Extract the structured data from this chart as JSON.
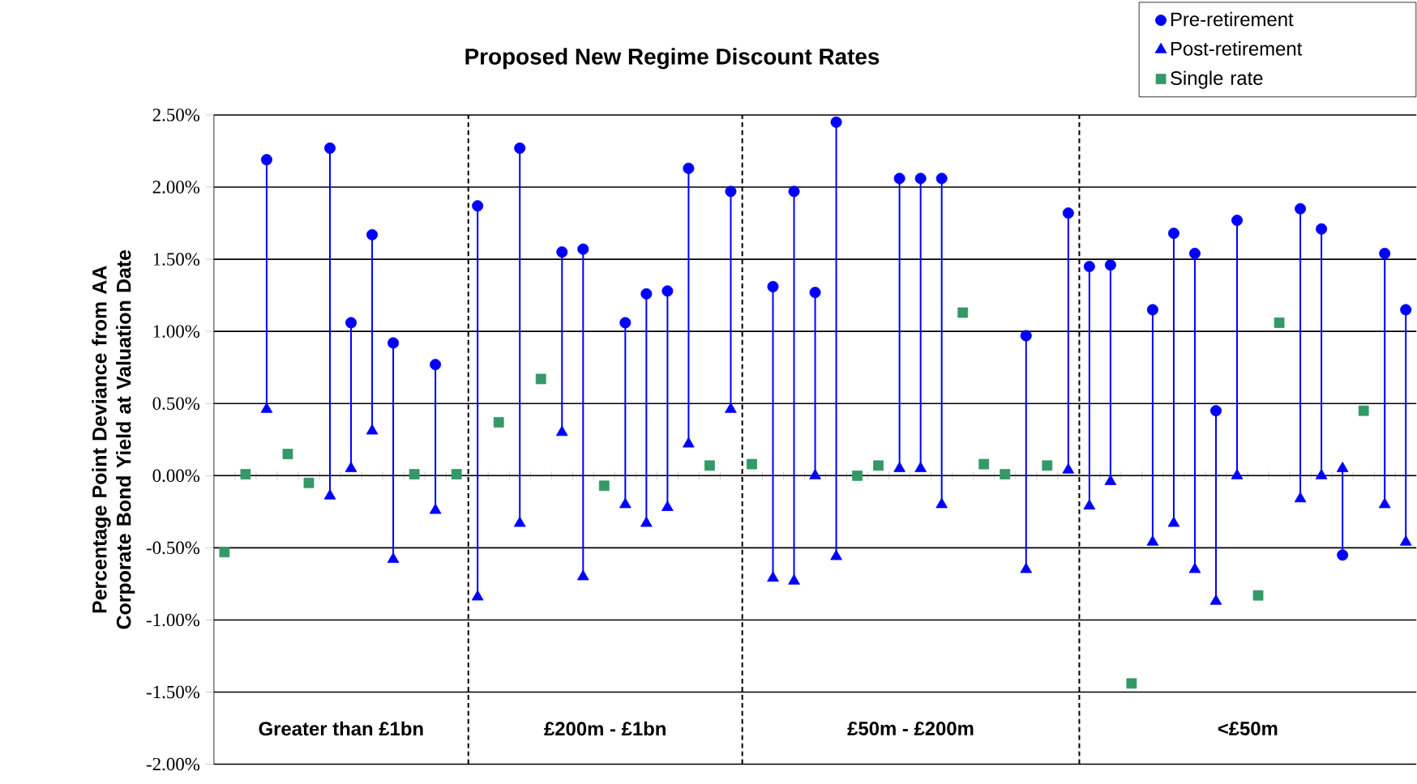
{
  "chart_data": {
    "type": "scatter",
    "title": "Proposed New Regime Discount Rates",
    "ylabel": "Percentage Point Deviance from AA Corporate Bond Yield at Valuation Date",
    "categories": [
      null,
      null,
      null,
      null,
      null,
      null,
      null,
      null,
      null,
      null,
      null,
      null,
      null,
      null,
      null,
      null,
      null,
      null,
      null,
      null,
      null,
      null,
      null,
      null,
      null,
      null,
      null,
      null,
      null,
      null,
      null,
      null,
      null,
      null,
      null,
      null,
      null,
      null,
      null,
      null,
      null,
      null,
      null,
      null,
      null,
      null,
      null,
      null,
      null,
      null,
      null,
      null,
      null,
      null,
      null,
      null,
      null
    ],
    "series": [
      {
        "name": "Pre-retirement",
        "color": "#0000ff",
        "marker": "circle",
        "values": [
          null,
          null,
          2.19,
          null,
          null,
          2.27,
          1.06,
          1.67,
          0.92,
          null,
          0.77,
          null,
          1.87,
          null,
          2.27,
          null,
          1.55,
          1.57,
          null,
          1.06,
          1.26,
          1.28,
          2.13,
          null,
          1.97,
          null,
          1.31,
          1.97,
          1.27,
          2.45,
          null,
          null,
          2.06,
          2.06,
          2.06,
          null,
          null,
          null,
          0.97,
          null,
          1.82,
          1.45,
          1.46,
          null,
          1.15,
          1.68,
          1.54,
          0.45,
          1.77,
          null,
          null,
          1.85,
          1.71,
          -0.55,
          null,
          1.54,
          1.15
        ]
      },
      {
        "name": "Post-retirement",
        "color": "#0000ff",
        "marker": "triangle",
        "values": [
          null,
          null,
          0.46,
          null,
          null,
          -0.14,
          0.05,
          0.31,
          -0.58,
          null,
          -0.24,
          null,
          -0.84,
          null,
          -0.33,
          null,
          0.3,
          -0.7,
          null,
          -0.2,
          -0.33,
          -0.22,
          0.22,
          null,
          0.46,
          null,
          -0.71,
          -0.73,
          0.0,
          -0.56,
          null,
          null,
          0.05,
          0.05,
          -0.2,
          null,
          null,
          null,
          -0.65,
          null,
          0.04,
          -0.21,
          -0.04,
          null,
          -0.46,
          -0.33,
          -0.65,
          -0.87,
          0.0,
          null,
          null,
          -0.16,
          0.0,
          0.05,
          null,
          -0.2,
          -0.46
        ]
      },
      {
        "name": "Single rate",
        "color": "#339966",
        "marker": "square",
        "values": [
          -0.53,
          0.01,
          null,
          0.15,
          -0.05,
          null,
          null,
          null,
          null,
          0.01,
          null,
          0.01,
          null,
          0.37,
          null,
          0.67,
          null,
          null,
          -0.07,
          null,
          null,
          null,
          null,
          0.07,
          null,
          0.08,
          null,
          null,
          null,
          null,
          0.0,
          0.07,
          null,
          null,
          null,
          1.13,
          0.08,
          0.01,
          null,
          0.07,
          null,
          null,
          null,
          -1.44,
          null,
          null,
          null,
          null,
          null,
          -0.83,
          1.06,
          null,
          null,
          null,
          0.45,
          null,
          null
        ]
      }
    ],
    "ylim": [
      -2,
      2.5
    ],
    "yticks": [
      {
        "value": -2,
        "label": "-2.00%"
      },
      {
        "value": -1.5,
        "label": "-1.50%"
      },
      {
        "value": -1,
        "label": "-1.00%"
      },
      {
        "value": -0.5,
        "label": "-0.50%"
      },
      {
        "value": 0,
        "label": "0.00%"
      },
      {
        "value": 0.5,
        "label": "0.50%"
      },
      {
        "value": 1,
        "label": "1.00%"
      },
      {
        "value": 1.5,
        "label": "1.50%"
      },
      {
        "value": 2,
        "label": "2.00%"
      },
      {
        "value": 2.5,
        "label": "2.50%"
      }
    ],
    "grid": "y",
    "legend": "top right",
    "annotations": [
      "Greater than £1bn",
      "£200m - £1bn",
      "£50m - £200m",
      "<£50m"
    ]
  }
}
